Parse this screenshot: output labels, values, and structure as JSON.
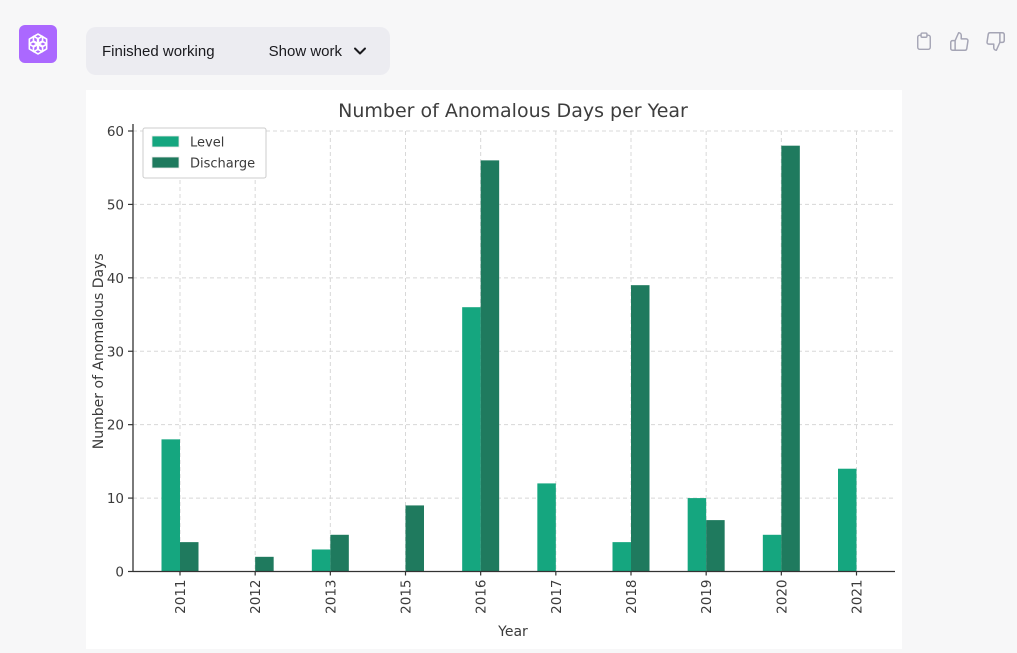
{
  "header": {
    "avatar_bg": "#ab68ff",
    "status_pill": {
      "status": "Finished working",
      "action": "Show work"
    },
    "icons": {
      "avatar": "openai-logo",
      "chevron": "chevron-down",
      "copy": "clipboard",
      "like": "thumbs-up",
      "dislike": "thumbs-down"
    },
    "icon_color": "#a5a5b5"
  },
  "chart_data": {
    "type": "bar",
    "title": "Number of Anomalous Days per Year",
    "xlabel": "Year",
    "ylabel": "Number of Anomalous Days",
    "categories": [
      "2011",
      "2012",
      "2013",
      "2015",
      "2016",
      "2017",
      "2018",
      "2019",
      "2020",
      "2021"
    ],
    "series": [
      {
        "name": "Level",
        "color": "#15a67f",
        "values": [
          18,
          0,
          3,
          0,
          36,
          12,
          4,
          10,
          5,
          14
        ]
      },
      {
        "name": "Discharge",
        "color": "#1f7a5e",
        "values": [
          4,
          2,
          5,
          9,
          56,
          0,
          39,
          7,
          58,
          0
        ]
      }
    ],
    "ylim": [
      0,
      60
    ],
    "yticks": [
      0,
      10,
      20,
      30,
      40,
      50,
      60
    ],
    "grid": true,
    "grid_color": "#d8d8d8",
    "text_color": "#3b3b3b",
    "spine_color": "#333333",
    "legend_position": "upper left",
    "legend_labels": [
      "Level",
      "Discharge"
    ]
  }
}
